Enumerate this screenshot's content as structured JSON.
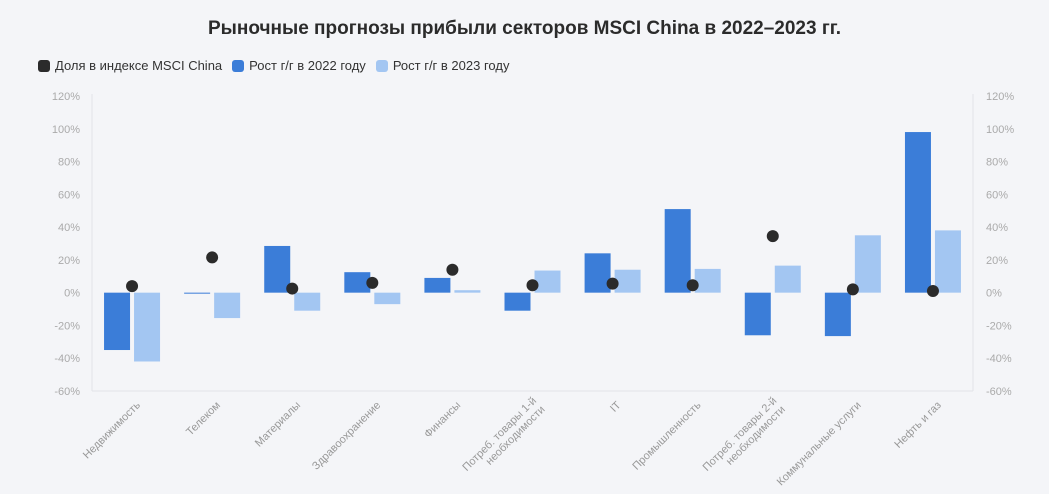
{
  "chart_data": {
    "type": "bar",
    "title": "Рыночные прогнозы прибыли секторов MSCI China в 2022–2023 гг.",
    "categories": [
      "Недвижимость",
      "Телеком",
      "Материалы",
      "Здравоохранение",
      "Финансы",
      "Потреб. товары 1-й|необходимости",
      "IT",
      "Промышленность",
      "Потреб. товары 2-й|необходимости",
      "Коммунальные услуги",
      "Нефть и газ"
    ],
    "series": [
      {
        "name": "Доля в индексе MSCI China",
        "kind": "dot",
        "color": "#2b2b2b",
        "values": [
          4,
          21.5,
          2.5,
          6,
          14,
          4.5,
          5.5,
          4.5,
          34.5,
          2,
          1
        ]
      },
      {
        "name": "Рост г/г в 2022 году",
        "kind": "bar",
        "color": "#3b7dd8",
        "values": [
          -35,
          -0.5,
          28.5,
          12.5,
          9,
          -11,
          24,
          51,
          -26,
          -26.5,
          98
        ]
      },
      {
        "name": "Рост г/г в 2023 году",
        "kind": "bar",
        "color": "#a3c6f2",
        "values": [
          -42,
          -15.5,
          -11,
          -7,
          1.5,
          13.5,
          14,
          14.5,
          16.5,
          35,
          38
        ]
      }
    ],
    "yticks": [
      "-60%",
      "-40%",
      "-20%",
      "0%",
      "20%",
      "40%",
      "60%",
      "80%",
      "100%",
      "120%"
    ],
    "ylim": [
      -60,
      120
    ],
    "legend_position": "top-left",
    "grid": false
  }
}
